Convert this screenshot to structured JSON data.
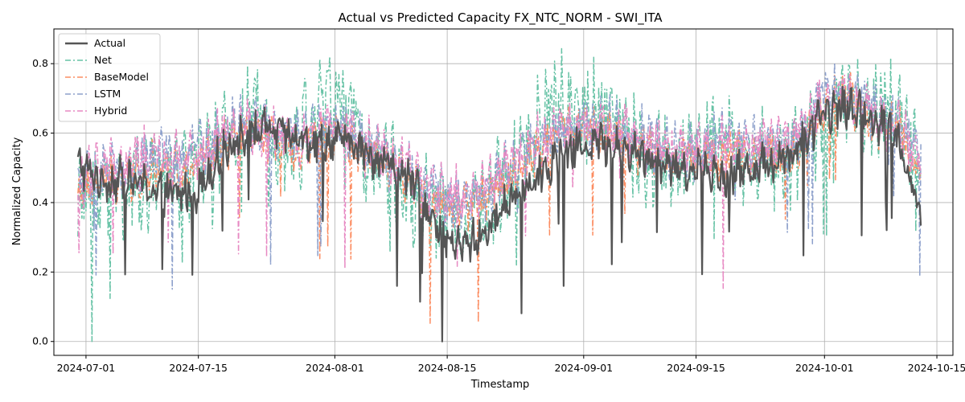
{
  "chart_data": {
    "type": "line",
    "title": "Actual vs Predicted Capacity FX_NTC_NORM - SWI_ITA",
    "xlabel": "Timestamp",
    "ylabel": "Normalized Capacity",
    "xlim": [
      "2024-06-27",
      "2024-10-17"
    ],
    "ylim": [
      -0.04,
      0.9
    ],
    "grid": true,
    "legend_position": "top-left",
    "xticks": [
      "2024-07-01",
      "2024-07-15",
      "2024-08-01",
      "2024-08-15",
      "2024-09-01",
      "2024-09-15",
      "2024-10-01",
      "2024-10-15"
    ],
    "yticks": [
      "0.0",
      "0.2",
      "0.4",
      "0.6",
      "0.8"
    ],
    "x_start": "2024-06-30",
    "x_end": "2024-10-14",
    "series": [
      {
        "name": "Actual",
        "color": "#555555",
        "style": "solid",
        "sample_dates": [
          "2024-06-30",
          "2024-07-03",
          "2024-07-06",
          "2024-07-09",
          "2024-07-12",
          "2024-07-15",
          "2024-07-18",
          "2024-07-21",
          "2024-07-24",
          "2024-07-27",
          "2024-07-30",
          "2024-08-02",
          "2024-08-05",
          "2024-08-08",
          "2024-08-11",
          "2024-08-14",
          "2024-08-17",
          "2024-08-20",
          "2024-08-23",
          "2024-08-26",
          "2024-08-29",
          "2024-09-01",
          "2024-09-04",
          "2024-09-07",
          "2024-09-10",
          "2024-09-13",
          "2024-09-16",
          "2024-09-19",
          "2024-09-22",
          "2024-09-25",
          "2024-09-28",
          "2024-10-01",
          "2024-10-04",
          "2024-10-07",
          "2024-10-10",
          "2024-10-13"
        ],
        "values": [
          0.51,
          0.46,
          0.47,
          0.44,
          0.42,
          0.44,
          0.55,
          0.6,
          0.61,
          0.58,
          0.57,
          0.58,
          0.54,
          0.51,
          0.45,
          0.3,
          0.27,
          0.32,
          0.42,
          0.48,
          0.53,
          0.57,
          0.57,
          0.55,
          0.52,
          0.5,
          0.49,
          0.48,
          0.5,
          0.52,
          0.56,
          0.66,
          0.68,
          0.64,
          0.6,
          0.37
        ]
      },
      {
        "name": "Net",
        "color": "#66c2a5",
        "style": "dashdot",
        "values": [
          0.4,
          0.45,
          0.43,
          0.48,
          0.47,
          0.5,
          0.56,
          0.66,
          0.62,
          0.55,
          0.68,
          0.7,
          0.54,
          0.48,
          0.42,
          0.38,
          0.36,
          0.4,
          0.48,
          0.6,
          0.68,
          0.68,
          0.64,
          0.58,
          0.52,
          0.5,
          0.56,
          0.58,
          0.52,
          0.52,
          0.54,
          0.66,
          0.7,
          0.66,
          0.66,
          0.55
        ]
      },
      {
        "name": "BaseModel",
        "color": "#fc8d62",
        "style": "dashdot",
        "values": [
          0.43,
          0.46,
          0.46,
          0.5,
          0.49,
          0.52,
          0.56,
          0.6,
          0.58,
          0.56,
          0.6,
          0.6,
          0.54,
          0.5,
          0.46,
          0.4,
          0.38,
          0.42,
          0.48,
          0.55,
          0.6,
          0.61,
          0.6,
          0.57,
          0.54,
          0.52,
          0.53,
          0.54,
          0.53,
          0.54,
          0.56,
          0.68,
          0.7,
          0.64,
          0.62,
          0.5
        ]
      },
      {
        "name": "LSTM",
        "color": "#8da0cb",
        "style": "dashdot",
        "values": [
          0.45,
          0.48,
          0.48,
          0.54,
          0.52,
          0.55,
          0.6,
          0.64,
          0.62,
          0.58,
          0.62,
          0.62,
          0.56,
          0.52,
          0.48,
          0.42,
          0.4,
          0.44,
          0.5,
          0.57,
          0.62,
          0.63,
          0.62,
          0.6,
          0.57,
          0.55,
          0.56,
          0.58,
          0.56,
          0.56,
          0.58,
          0.72,
          0.72,
          0.66,
          0.64,
          0.52
        ]
      },
      {
        "name": "Hybrid",
        "color": "#e78ac3",
        "style": "dashdot",
        "values": [
          0.46,
          0.5,
          0.5,
          0.54,
          0.53,
          0.55,
          0.6,
          0.63,
          0.61,
          0.58,
          0.61,
          0.61,
          0.56,
          0.52,
          0.49,
          0.44,
          0.42,
          0.45,
          0.5,
          0.56,
          0.61,
          0.62,
          0.61,
          0.59,
          0.56,
          0.54,
          0.55,
          0.57,
          0.56,
          0.57,
          0.59,
          0.7,
          0.7,
          0.65,
          0.63,
          0.52
        ]
      }
    ]
  }
}
